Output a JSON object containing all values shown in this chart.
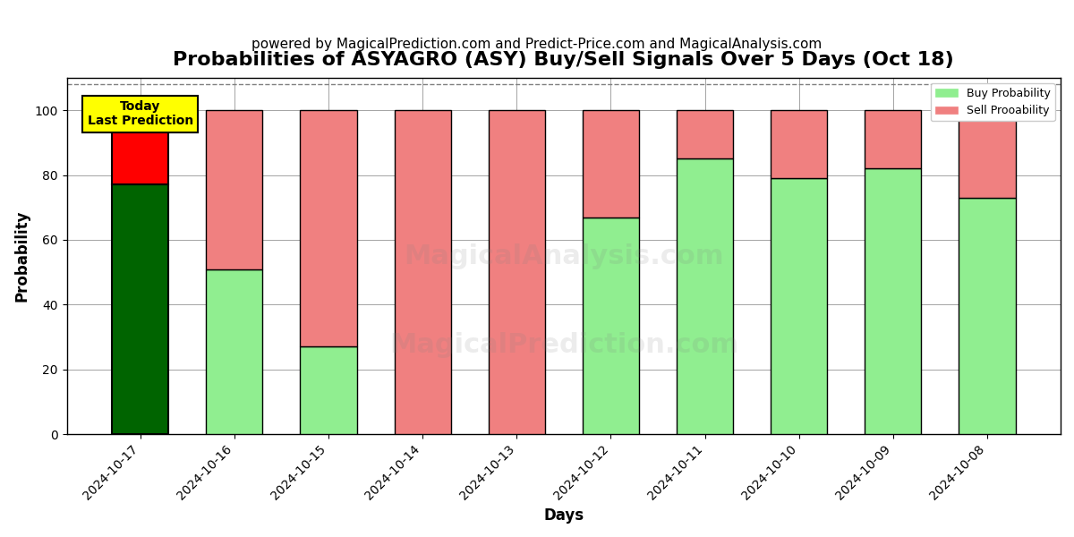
{
  "title": "Probabilities of ASYAGRO (ASY) Buy/Sell Signals Over 5 Days (Oct 18)",
  "subtitle": "powered by MagicalPrediction.com and Predict-Price.com and MagicalAnalysis.com",
  "xlabel": "Days",
  "ylabel": "Probability",
  "categories": [
    "2024-10-17",
    "2024-10-16",
    "2024-10-15",
    "2024-10-14",
    "2024-10-13",
    "2024-10-12",
    "2024-10-11",
    "2024-10-10",
    "2024-10-09",
    "2024-10-08"
  ],
  "buy_values": [
    77,
    51,
    27,
    0,
    0,
    67,
    85,
    79,
    82,
    73
  ],
  "sell_values": [
    23,
    49,
    73,
    100,
    100,
    33,
    15,
    21,
    18,
    27
  ],
  "today_buy_color": "#006400",
  "today_sell_color": "#FF0000",
  "regular_buy_color": "#90EE90",
  "regular_sell_color": "#F08080",
  "today_label_bg": "#FFFF00",
  "today_label_text": "Today\nLast Prediction",
  "ylim": [
    0,
    110
  ],
  "yticks": [
    0,
    20,
    40,
    60,
    80,
    100
  ],
  "dashed_line_y": 108,
  "watermark_texts": [
    "MagicalAnalysis.com",
    "MagicalPrediction.com"
  ],
  "legend_buy": "Buy Probability",
  "legend_sell": "Sell Prooability",
  "title_fontsize": 16,
  "subtitle_fontsize": 11,
  "axis_label_fontsize": 12,
  "tick_fontsize": 10
}
